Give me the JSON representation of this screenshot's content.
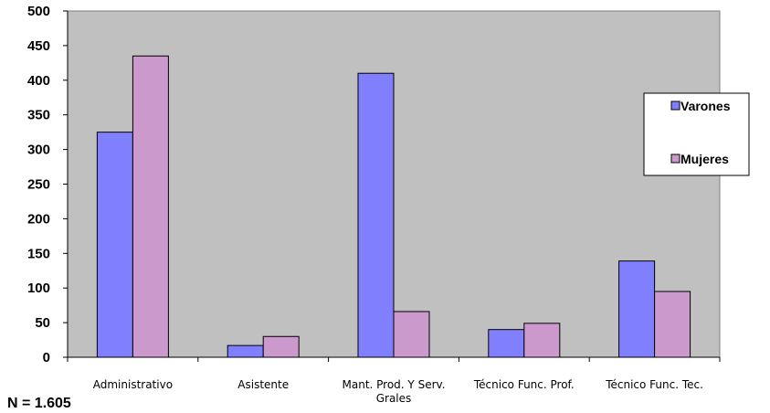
{
  "chart_data": {
    "type": "bar",
    "categories": [
      "Administrativo",
      "Asistente",
      "Mant. Prod. Y Serv. Grales",
      "Técnico Func. Prof.",
      "Técnico Func. Tec."
    ],
    "category_lines": [
      [
        "Administrativo"
      ],
      [
        "Asistente"
      ],
      [
        "Mant. Prod. Y Serv.",
        "Grales"
      ],
      [
        "Técnico Func. Prof."
      ],
      [
        "Técnico Func. Tec."
      ]
    ],
    "series": [
      {
        "name": "Varones",
        "values": [
          325,
          17,
          410,
          40,
          139
        ],
        "color": "#8080ff"
      },
      {
        "name": "Mujeres",
        "values": [
          435,
          30,
          66,
          49,
          95
        ],
        "color": "#cc99cc"
      }
    ],
    "ylim": [
      0,
      500
    ],
    "yticks": [
      "0",
      "50",
      "100",
      "150",
      "200",
      "250",
      "300",
      "350",
      "400",
      "450",
      "500"
    ],
    "grid": false,
    "legend_position": "right",
    "plot_background": "#c0c0c0"
  },
  "footnote": "N = 1.605"
}
